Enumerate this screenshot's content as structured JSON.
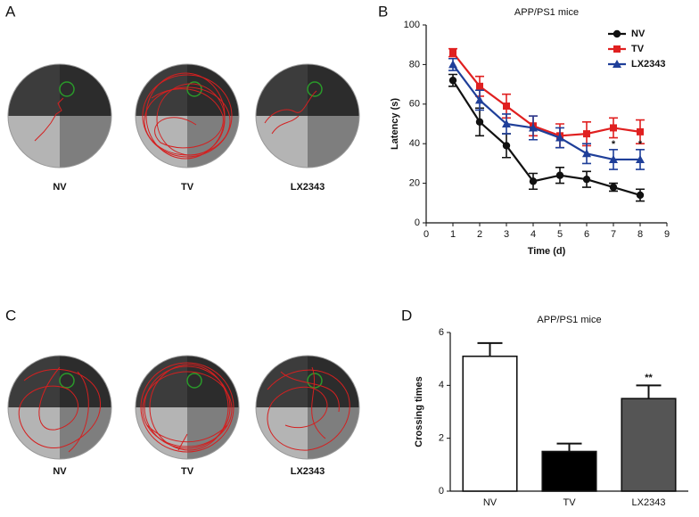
{
  "figure": {
    "panels": [
      "A",
      "B",
      "C",
      "D"
    ],
    "maze_rows": [
      {
        "labels": [
          "NV",
          "TV",
          "LX2343"
        ]
      },
      {
        "labels": [
          "NV",
          "TV",
          "LX2343"
        ]
      }
    ]
  },
  "chart_data": [
    {
      "type": "line",
      "title": "APP/PS1 mice",
      "x_label": "Time (d)",
      "y_label": "Latency (s)",
      "x": [
        1,
        2,
        3,
        4,
        5,
        6,
        7,
        8
      ],
      "xlim": [
        0,
        9
      ],
      "xticks": [
        0,
        1,
        2,
        3,
        4,
        5,
        6,
        7,
        8,
        9
      ],
      "ylim": [
        0,
        100
      ],
      "yticks": [
        0,
        20,
        40,
        60,
        80,
        100
      ],
      "legend": "top-right",
      "series": [
        {
          "name": "NV",
          "color": "#111111",
          "marker": "circle",
          "values": [
            72,
            51,
            39,
            21,
            24,
            22,
            18,
            14
          ],
          "errors": [
            3,
            7,
            6,
            4,
            4,
            4,
            2,
            3
          ],
          "annotations": [
            null,
            null,
            null,
            null,
            null,
            null,
            null,
            null
          ]
        },
        {
          "name": "TV",
          "color": "#e02020",
          "marker": "square",
          "values": [
            86,
            69,
            59,
            49,
            44,
            45,
            48,
            46
          ],
          "errors": [
            2,
            5,
            6,
            5,
            6,
            6,
            5,
            6
          ],
          "annotations": [
            null,
            null,
            null,
            null,
            null,
            null,
            null,
            null
          ]
        },
        {
          "name": "LX2343",
          "color": "#1f3f99",
          "marker": "triangle",
          "values": [
            80,
            62,
            50,
            48,
            43,
            35,
            32,
            32
          ],
          "errors": [
            3,
            5,
            5,
            6,
            5,
            5,
            5,
            5
          ],
          "annotations": [
            null,
            null,
            null,
            null,
            null,
            null,
            "*",
            "*"
          ]
        }
      ]
    },
    {
      "type": "bar",
      "title": "APP/PS1 mice",
      "y_label": "Crossing times",
      "categories": [
        "NV",
        "TV",
        "LX2343"
      ],
      "values": [
        5.1,
        1.5,
        3.5
      ],
      "errors": [
        0.5,
        0.3,
        0.5
      ],
      "colors": [
        "#ffffff",
        "#000000",
        "#555555"
      ],
      "annotations": [
        null,
        null,
        "**"
      ],
      "ylim": [
        0,
        6
      ],
      "yticks": [
        0,
        2,
        4,
        6
      ]
    }
  ]
}
